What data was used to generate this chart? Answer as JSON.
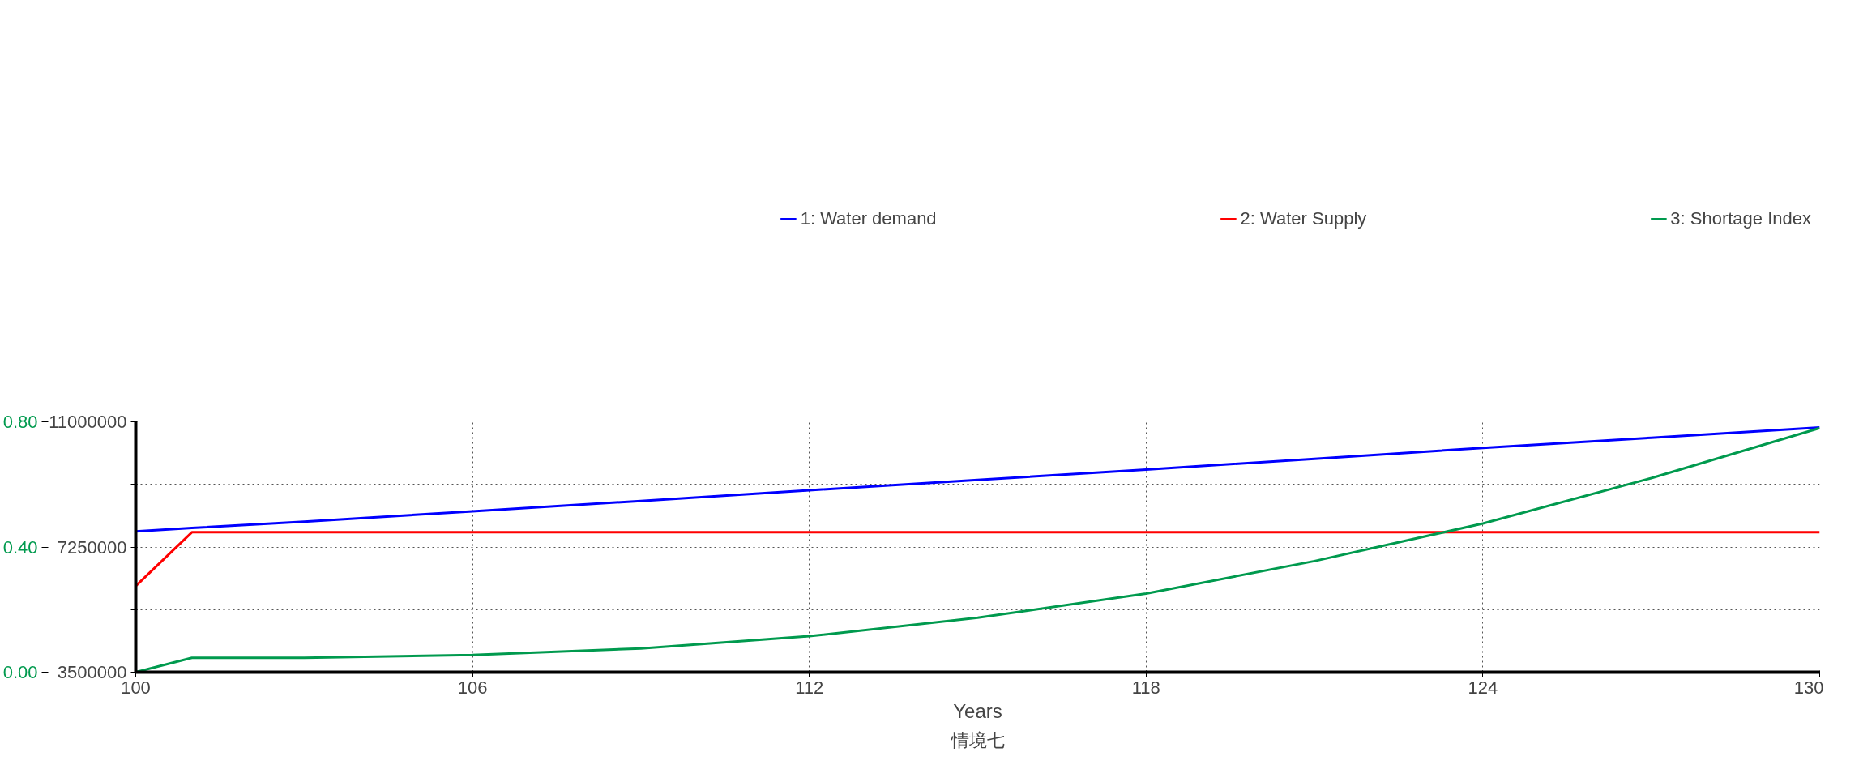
{
  "chart_data": {
    "type": "line",
    "title": "情境七",
    "xlabel": "Years",
    "x": [
      100,
      101,
      103,
      106,
      109,
      112,
      115,
      118,
      121,
      124,
      127,
      130
    ],
    "series": [
      {
        "name": "1: Water demand",
        "color": "#0000ff",
        "values": [
          7720000,
          7820000,
          8010000,
          8320000,
          8630000,
          8950000,
          9260000,
          9570000,
          9890000,
          10220000,
          10520000,
          10830000
        ]
      },
      {
        "name": "2: Water Supply",
        "color": "#ff0000",
        "values": [
          6080000,
          7690000,
          7690000,
          7690000,
          7690000,
          7690000,
          7690000,
          7690000,
          7690000,
          7690000,
          7690000,
          7690000
        ]
      },
      {
        "name": "3: Shortage Index",
        "color": "#009a4e",
        "axis": "y2",
        "values": [
          0,
          0.046,
          0.046,
          0.055,
          0.076,
          0.115,
          0.174,
          0.251,
          0.355,
          0.475,
          0.62,
          0.78
        ]
      }
    ],
    "xlim": [
      100,
      130
    ],
    "xticks": [
      100,
      106,
      112,
      118,
      124,
      130
    ],
    "ylim": [
      3500000,
      11000000
    ],
    "yticks": [
      3500000,
      {
        "value": 5375000,
        "label": null
      },
      7250000,
      {
        "value": 9125000,
        "label": null
      },
      11000000
    ],
    "y2lim": [
      0,
      0.8
    ],
    "y2ticks": [
      {
        "value": 0,
        "label": "0.00"
      },
      {
        "value": 0.4,
        "label": "0.40"
      },
      {
        "value": 0.8,
        "label": "0.80"
      }
    ],
    "grid": true,
    "legend": "top",
    "line_style": "solid",
    "marker": "none"
  }
}
